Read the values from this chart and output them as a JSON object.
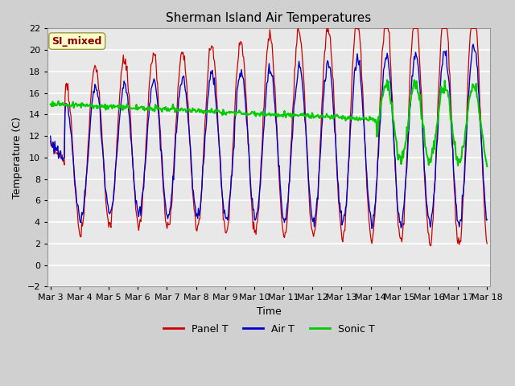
{
  "title": "Sherman Island Air Temperatures",
  "xlabel": "Time",
  "ylabel": "Temperature (C)",
  "ylim": [
    -2,
    22
  ],
  "yticks": [
    -2,
    0,
    2,
    4,
    6,
    8,
    10,
    12,
    14,
    16,
    18,
    20,
    22
  ],
  "x_labels": [
    "Mar 3",
    "Mar 4",
    "Mar 5",
    "Mar 6",
    "Mar 7",
    "Mar 8",
    "Mar 9",
    "Mar 10",
    "Mar 11",
    "Mar 12",
    "Mar 13",
    "Mar 14",
    "Mar 15",
    "Mar 16",
    "Mar 17",
    "Mar 18"
  ],
  "panel_color": "#cc0000",
  "air_color": "#0000cc",
  "sonic_color": "#00cc00",
  "fig_bg": "#d0d0d0",
  "plot_bg": "#e8e8e8",
  "grid_color": "#ffffff",
  "annotation_text": "SI_mixed",
  "annotation_color": "#8b0000",
  "annotation_bg": "#ffffcc",
  "legend_labels": [
    "Panel T",
    "Air T",
    "Sonic T"
  ],
  "title_fontsize": 11,
  "label_fontsize": 9,
  "tick_fontsize": 8
}
